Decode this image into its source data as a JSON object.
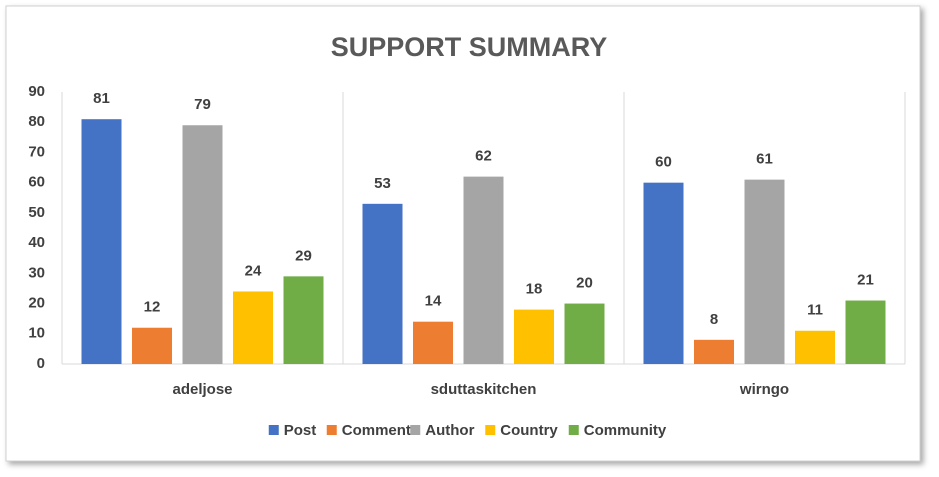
{
  "chart_data": {
    "type": "bar",
    "title": "SUPPORT SUMMARY",
    "categories": [
      "adeljose",
      "sduttaskitchen",
      "wirngo"
    ],
    "series": [
      {
        "name": "Post",
        "color": "#4472c4",
        "values": [
          81,
          53,
          60
        ]
      },
      {
        "name": "Comment",
        "color": "#ed7d31",
        "values": [
          12,
          14,
          8
        ]
      },
      {
        "name": "Author",
        "color": "#a5a5a5",
        "values": [
          79,
          62,
          61
        ]
      },
      {
        "name": "Country",
        "color": "#ffc000",
        "values": [
          24,
          18,
          11
        ]
      },
      {
        "name": "Community",
        "color": "#70ad47",
        "values": [
          29,
          20,
          21
        ]
      }
    ],
    "ylim": [
      0,
      90
    ],
    "yticks": [
      0,
      10,
      20,
      30,
      40,
      50,
      60,
      70,
      80,
      90
    ],
    "legend": "bottom"
  }
}
